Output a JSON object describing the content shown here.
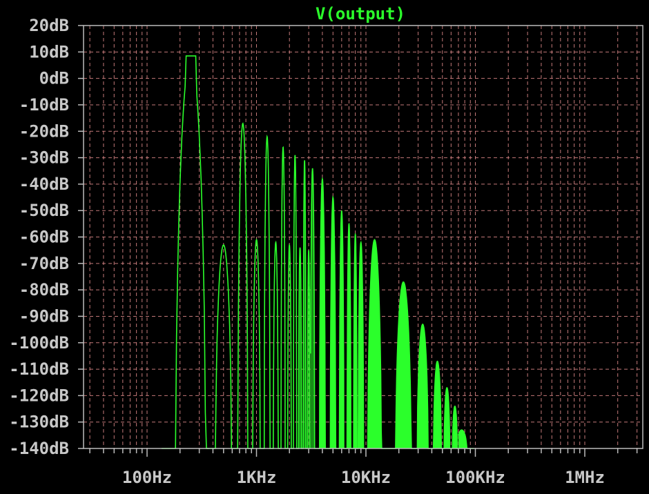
{
  "chart_data": {
    "type": "line",
    "title": "V(output)",
    "xlabel": "",
    "ylabel": "",
    "x_scale": "log",
    "xlim": [
      "30Hz",
      "3MHz"
    ],
    "ylim": [
      -140,
      20
    ],
    "grid": true,
    "colors": {
      "background": "#000000",
      "trace": "#2bff2b",
      "grid": "#e89090",
      "text": "#c8c8c8"
    },
    "y_tick_labels": [
      "20dB",
      "10dB",
      "0dB",
      "-10dB",
      "-20dB",
      "-30dB",
      "-40dB",
      "-50dB",
      "-60dB",
      "-70dB",
      "-80dB",
      "-90dB",
      "-100dB",
      "-110dB",
      "-120dB",
      "-130dB",
      "-140dB"
    ],
    "x_tick_labels": [
      "100Hz",
      "1KHz",
      "10KHz",
      "100KHz",
      "1MHz"
    ],
    "series": [
      {
        "name": "V(output)",
        "peaks": [
          {
            "freq_hz": 250,
            "level_db": 8.5
          },
          {
            "freq_hz": 500,
            "level_db": -63
          },
          {
            "freq_hz": 750,
            "level_db": -17
          },
          {
            "freq_hz": 1000,
            "level_db": -61
          },
          {
            "freq_hz": 1250,
            "level_db": -22
          },
          {
            "freq_hz": 1500,
            "level_db": -62
          },
          {
            "freq_hz": 1750,
            "level_db": -26
          },
          {
            "freq_hz": 2000,
            "level_db": -63
          },
          {
            "freq_hz": 2250,
            "level_db": -29
          },
          {
            "freq_hz": 2500,
            "level_db": -64
          },
          {
            "freq_hz": 2750,
            "level_db": -31
          },
          {
            "freq_hz": 3000,
            "level_db": -65
          },
          {
            "freq_hz": 3250,
            "level_db": -34
          },
          {
            "freq_hz": 4000,
            "level_db": -38
          },
          {
            "freq_hz": 5000,
            "level_db": -45
          },
          {
            "freq_hz": 6000,
            "level_db": -50
          },
          {
            "freq_hz": 7000,
            "level_db": -55
          },
          {
            "freq_hz": 8000,
            "level_db": -59
          },
          {
            "freq_hz": 9000,
            "level_db": -62
          },
          {
            "freq_hz": 12000,
            "level_db": -61
          },
          {
            "freq_hz": 22000,
            "level_db": -77
          },
          {
            "freq_hz": 33000,
            "level_db": -93
          },
          {
            "freq_hz": 45000,
            "level_db": -107
          },
          {
            "freq_hz": 55000,
            "level_db": -117
          },
          {
            "freq_hz": 65000,
            "level_db": -124
          },
          {
            "freq_hz": 75000,
            "level_db": -133
          }
        ]
      }
    ]
  }
}
